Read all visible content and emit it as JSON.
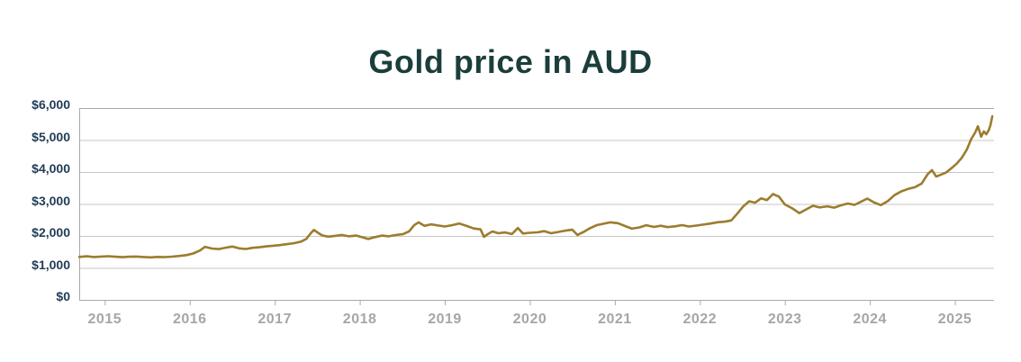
{
  "title": {
    "text": "Gold price in AUD"
  },
  "colors": {
    "title": "#1b3e3c",
    "y_label": "#223c58",
    "x_label": "#a6a6a6",
    "gridline": "#c7c7c7",
    "axis": "#a9a9a9",
    "line": "#9c7c2e",
    "background": "#ffffff"
  },
  "chart_data": {
    "type": "line",
    "title": "Gold price in AUD",
    "xlabel": "",
    "ylabel": "",
    "legend": "none",
    "grid": "horizontal-only",
    "x_domain": [
      2014.7,
      2025.46
    ],
    "ylim": [
      0,
      6000
    ],
    "y_ticks": [
      {
        "value": 0,
        "label": "$0"
      },
      {
        "value": 1000,
        "label": "$1,000"
      },
      {
        "value": 2000,
        "label": "$2,000"
      },
      {
        "value": 3000,
        "label": "$3,000"
      },
      {
        "value": 4000,
        "label": "$4,000"
      },
      {
        "value": 5000,
        "label": "$5,000"
      },
      {
        "value": 6000,
        "label": "$6,000"
      }
    ],
    "x_ticks": [
      {
        "value": 2015,
        "label": "2015"
      },
      {
        "value": 2016,
        "label": "2016"
      },
      {
        "value": 2017,
        "label": "2017"
      },
      {
        "value": 2018,
        "label": "2018"
      },
      {
        "value": 2019,
        "label": "2019"
      },
      {
        "value": 2020,
        "label": "2020"
      },
      {
        "value": 2021,
        "label": "2021"
      },
      {
        "value": 2022,
        "label": "2022"
      },
      {
        "value": 2023,
        "label": "2023"
      },
      {
        "value": 2024,
        "label": "2024"
      },
      {
        "value": 2025,
        "label": "2025"
      }
    ],
    "series": [
      {
        "name": "Gold price in AUD",
        "points": [
          [
            2014.7,
            1345
          ],
          [
            2014.79,
            1362
          ],
          [
            2014.87,
            1340
          ],
          [
            2014.96,
            1355
          ],
          [
            2015.04,
            1365
          ],
          [
            2015.12,
            1348
          ],
          [
            2015.21,
            1335
          ],
          [
            2015.29,
            1348
          ],
          [
            2015.37,
            1356
          ],
          [
            2015.46,
            1340
          ],
          [
            2015.54,
            1330
          ],
          [
            2015.62,
            1344
          ],
          [
            2015.71,
            1338
          ],
          [
            2015.79,
            1352
          ],
          [
            2015.87,
            1372
          ],
          [
            2015.96,
            1400
          ],
          [
            2016.04,
            1450
          ],
          [
            2016.12,
            1545
          ],
          [
            2016.18,
            1660
          ],
          [
            2016.26,
            1605
          ],
          [
            2016.34,
            1588
          ],
          [
            2016.42,
            1632
          ],
          [
            2016.5,
            1668
          ],
          [
            2016.58,
            1612
          ],
          [
            2016.66,
            1592
          ],
          [
            2016.74,
            1628
          ],
          [
            2016.82,
            1645
          ],
          [
            2016.9,
            1672
          ],
          [
            2016.98,
            1692
          ],
          [
            2017.06,
            1712
          ],
          [
            2017.15,
            1745
          ],
          [
            2017.23,
            1775
          ],
          [
            2017.31,
            1822
          ],
          [
            2017.37,
            1905
          ],
          [
            2017.42,
            2070
          ],
          [
            2017.46,
            2190
          ],
          [
            2017.51,
            2095
          ],
          [
            2017.56,
            2015
          ],
          [
            2017.63,
            1978
          ],
          [
            2017.71,
            2002
          ],
          [
            2017.79,
            2032
          ],
          [
            2017.87,
            1988
          ],
          [
            2017.96,
            2012
          ],
          [
            2018.04,
            1952
          ],
          [
            2018.1,
            1905
          ],
          [
            2018.18,
            1962
          ],
          [
            2018.26,
            2012
          ],
          [
            2018.34,
            1990
          ],
          [
            2018.42,
            2028
          ],
          [
            2018.51,
            2058
          ],
          [
            2018.58,
            2145
          ],
          [
            2018.64,
            2335
          ],
          [
            2018.69,
            2425
          ],
          [
            2018.76,
            2315
          ],
          [
            2018.84,
            2362
          ],
          [
            2018.92,
            2328
          ],
          [
            2019.0,
            2295
          ],
          [
            2019.09,
            2338
          ],
          [
            2019.17,
            2390
          ],
          [
            2019.26,
            2310
          ],
          [
            2019.34,
            2235
          ],
          [
            2019.42,
            2205
          ],
          [
            2019.46,
            1972
          ],
          [
            2019.51,
            2065
          ],
          [
            2019.56,
            2140
          ],
          [
            2019.63,
            2085
          ],
          [
            2019.71,
            2110
          ],
          [
            2019.79,
            2058
          ],
          [
            2019.86,
            2248
          ],
          [
            2019.92,
            2075
          ],
          [
            2020.0,
            2098
          ],
          [
            2020.09,
            2112
          ],
          [
            2020.17,
            2150
          ],
          [
            2020.25,
            2085
          ],
          [
            2020.34,
            2128
          ],
          [
            2020.42,
            2165
          ],
          [
            2020.5,
            2195
          ],
          [
            2020.56,
            2032
          ],
          [
            2020.63,
            2120
          ],
          [
            2020.71,
            2245
          ],
          [
            2020.79,
            2338
          ],
          [
            2020.87,
            2382
          ],
          [
            2020.95,
            2425
          ],
          [
            2021.04,
            2398
          ],
          [
            2021.12,
            2310
          ],
          [
            2021.2,
            2228
          ],
          [
            2021.29,
            2268
          ],
          [
            2021.37,
            2335
          ],
          [
            2021.46,
            2282
          ],
          [
            2021.54,
            2318
          ],
          [
            2021.62,
            2275
          ],
          [
            2021.71,
            2302
          ],
          [
            2021.79,
            2338
          ],
          [
            2021.87,
            2295
          ],
          [
            2021.96,
            2325
          ],
          [
            2022.04,
            2355
          ],
          [
            2022.12,
            2385
          ],
          [
            2022.21,
            2428
          ],
          [
            2022.29,
            2445
          ],
          [
            2022.37,
            2485
          ],
          [
            2022.44,
            2695
          ],
          [
            2022.51,
            2920
          ],
          [
            2022.58,
            3085
          ],
          [
            2022.65,
            3040
          ],
          [
            2022.72,
            3175
          ],
          [
            2022.79,
            3120
          ],
          [
            2022.86,
            3310
          ],
          [
            2022.93,
            3230
          ],
          [
            2023.0,
            2985
          ],
          [
            2023.09,
            2860
          ],
          [
            2023.17,
            2712
          ],
          [
            2023.25,
            2828
          ],
          [
            2023.33,
            2945
          ],
          [
            2023.41,
            2890
          ],
          [
            2023.5,
            2928
          ],
          [
            2023.58,
            2885
          ],
          [
            2023.66,
            2958
          ],
          [
            2023.74,
            3015
          ],
          [
            2023.82,
            2972
          ],
          [
            2023.9,
            3075
          ],
          [
            2023.97,
            3170
          ],
          [
            2024.05,
            3045
          ],
          [
            2024.13,
            2962
          ],
          [
            2024.21,
            3088
          ],
          [
            2024.29,
            3275
          ],
          [
            2024.37,
            3395
          ],
          [
            2024.45,
            3470
          ],
          [
            2024.53,
            3525
          ],
          [
            2024.61,
            3640
          ],
          [
            2024.68,
            3930
          ],
          [
            2024.73,
            4060
          ],
          [
            2024.78,
            3855
          ],
          [
            2024.84,
            3920
          ],
          [
            2024.9,
            3990
          ],
          [
            2024.96,
            4120
          ],
          [
            2025.02,
            4260
          ],
          [
            2025.08,
            4440
          ],
          [
            2025.14,
            4700
          ],
          [
            2025.19,
            5020
          ],
          [
            2025.24,
            5240
          ],
          [
            2025.27,
            5430
          ],
          [
            2025.31,
            5105
          ],
          [
            2025.34,
            5270
          ],
          [
            2025.37,
            5180
          ],
          [
            2025.4,
            5315
          ],
          [
            2025.42,
            5480
          ],
          [
            2025.44,
            5740
          ]
        ]
      }
    ]
  }
}
